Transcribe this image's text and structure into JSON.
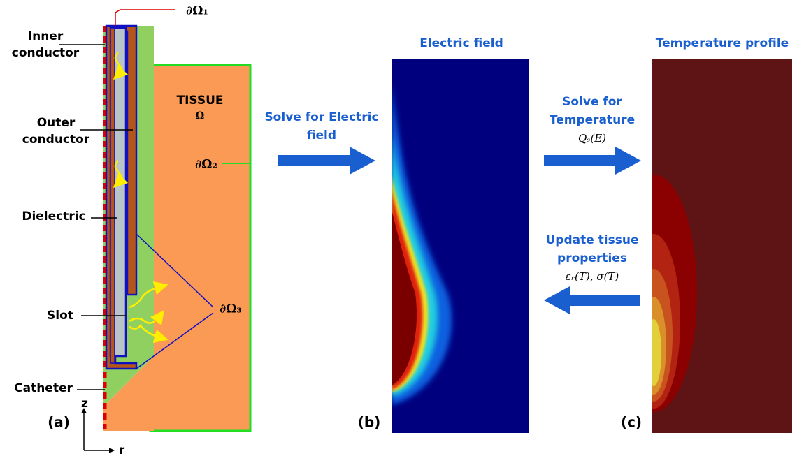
{
  "panel_a": {
    "boundary_1": "∂Ω₁",
    "inner_conductor": [
      "Inner",
      "conductor"
    ],
    "outer_conductor": [
      "Outer",
      "conductor"
    ],
    "dielectric": "Dielectric",
    "slot": "Slot",
    "catheter": "Catheter",
    "tissue": "TISSUE",
    "tissue_symbol": "Ω",
    "boundary_2": "∂Ω₂",
    "boundary_3": "∂Ω₃",
    "axis_z": "z",
    "axis_r": "r",
    "panel_label": "(a)"
  },
  "step_1": {
    "label": [
      "Solve for Electric",
      "field"
    ]
  },
  "panel_b": {
    "title": "Electric field",
    "panel_label": "(b)"
  },
  "step_2": {
    "label": [
      "Solve for",
      "Temperature"
    ],
    "formula": "Qₛ(E)"
  },
  "step_3": {
    "label": [
      "Update tissue",
      "properties"
    ],
    "formula": "εᵣ(T), σ(T)"
  },
  "panel_c": {
    "title": "Temperature profile",
    "panel_label": "(c)"
  }
}
